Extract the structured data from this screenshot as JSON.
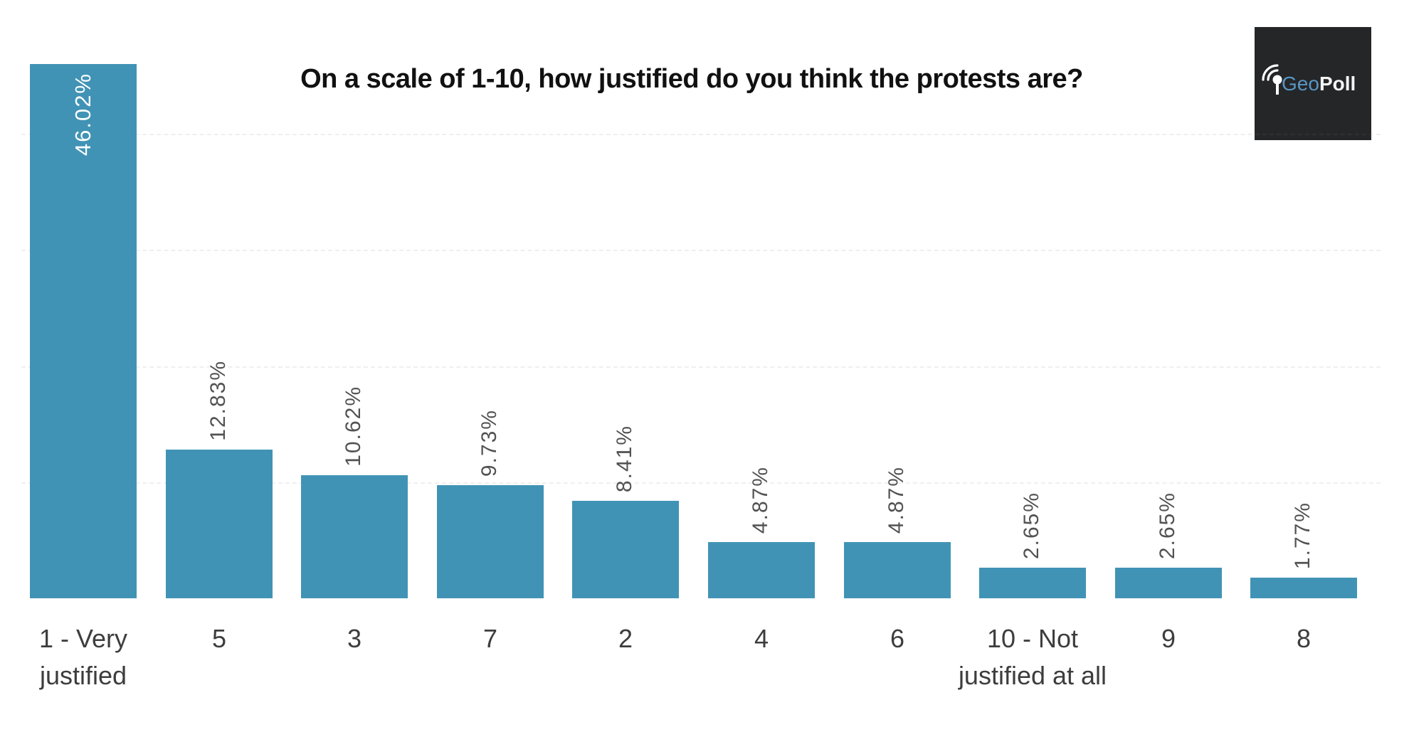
{
  "title": "On a scale of 1-10, how justified do you think the protests are?",
  "logo": {
    "geo": "Geo",
    "poll": "Poll",
    "background": "#242628",
    "geo_color": "#5896c4",
    "poll_color": "#f5f5f5",
    "icon": "signal-pin-icon",
    "icon_color": "#ffffff"
  },
  "colors": {
    "background": "#ffffff",
    "bar": "#4193b5",
    "data_label": "#525252",
    "inside_label": "#ffffff",
    "axis_label": "#3d3d3d",
    "title": "#111111"
  },
  "chart_data": {
    "type": "bar",
    "title": "On a scale of 1-10, how justified do you think the protests are?",
    "categories": [
      "1 - Very justified",
      "5",
      "3",
      "7",
      "2",
      "4",
      "6",
      "10 - Not justified at all",
      "9",
      "8"
    ],
    "values": [
      46.02,
      12.83,
      10.62,
      9.73,
      8.41,
      4.87,
      4.87,
      2.65,
      2.65,
      1.77
    ],
    "labels": [
      "46.02%",
      "12.83%",
      "10.62%",
      "9.73%",
      "8.41%",
      "4.87%",
      "4.87%",
      "2.65%",
      "2.65%",
      "1.77%"
    ],
    "xlabel": "",
    "ylabel": "",
    "ylim": [
      0,
      50
    ],
    "bar_color": "#4193b5",
    "label_rotation": -90,
    "first_label_inside": true,
    "legend": "none",
    "grid": "faint horizontal dashed every 10%"
  }
}
